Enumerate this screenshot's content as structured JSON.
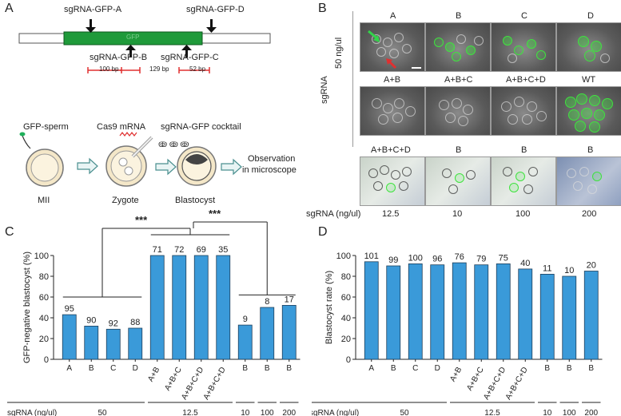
{
  "panel_a": {
    "letter": "A",
    "gene_label": "GFP",
    "sgrna_a": "sgRNA-GFP-A",
    "sgrna_b": "sgRNA-GFP-B",
    "sgrna_c": "sgRNA-GFP-C",
    "sgrna_d": "sgRNA-GFP-D",
    "dist_1": "100 bp",
    "dist_2": "129 bp",
    "dist_3": "52 bp",
    "workflow": {
      "gfp_sperm": "GFP-sperm",
      "cas9": "Cas9 mRNA",
      "cocktail": "sgRNA-GFP cocktail",
      "mii": "MII",
      "zygote": "Zygote",
      "blastocyst": "Blastocyst",
      "observation_1": "Observation",
      "observation_2": "in microscope"
    }
  },
  "panel_b": {
    "letter": "B",
    "side_label_conc": "50 ng/ul",
    "side_label_sgrna": "sgRNA",
    "row1": [
      "A",
      "B",
      "C",
      "D"
    ],
    "row2": [
      "A+B",
      "A+B+C",
      "A+B+C+D",
      "WT"
    ],
    "row3": [
      "A+B+C+D",
      "B",
      "B",
      "B"
    ],
    "conc_label": "sgRNA (ng/ul)",
    "conc_values": [
      "12.5",
      "10",
      "100",
      "200"
    ]
  },
  "panel_c": {
    "letter": "C",
    "significance_1": "***",
    "significance_2": "***"
  },
  "panel_d": {
    "letter": "D"
  },
  "chart_data": [
    {
      "type": "bar",
      "title": "",
      "ylabel": "GFP-negative blastocyst (%)",
      "xlabel": "sgRNA (ng/ul)",
      "ylim": [
        0,
        100
      ],
      "yticks": [
        "0",
        "20",
        "40",
        "60",
        "80",
        "100"
      ],
      "categories": [
        "A",
        "B",
        "C",
        "D",
        "A+B",
        "A+B+C",
        "A+B+C+D",
        "A+B+C+D",
        "B",
        "B",
        "B"
      ],
      "values": [
        43,
        32,
        29,
        30,
        100,
        100,
        100,
        100,
        33,
        50,
        52
      ],
      "bar_labels": [
        "95",
        "90",
        "92",
        "88",
        "71",
        "72",
        "69",
        "35",
        "9",
        "8",
        "17"
      ],
      "concentration_groups": [
        "50",
        "12.5",
        "10",
        "100",
        "200"
      ]
    },
    {
      "type": "bar",
      "title": "",
      "ylabel": "Blastocyst rate (%)",
      "xlabel": "sgRNA (ng/ul)",
      "ylim": [
        0,
        100
      ],
      "yticks": [
        "0",
        "20",
        "40",
        "60",
        "80",
        "100"
      ],
      "categories": [
        "A",
        "B",
        "C",
        "D",
        "A+B",
        "A+B+C",
        "A+B+C+D",
        "A+B+C+D",
        "B",
        "B",
        "B"
      ],
      "values": [
        94,
        90,
        92,
        91,
        93,
        91,
        92,
        87,
        82,
        80,
        85
      ],
      "bar_labels": [
        "101",
        "99",
        "100",
        "96",
        "76",
        "79",
        "75",
        "40",
        "11",
        "10",
        "20"
      ],
      "concentration_groups": [
        "50",
        "12.5",
        "10",
        "100",
        "200"
      ]
    }
  ],
  "colors": {
    "bar": "#3a9ad9",
    "bar_edge": "#1f3f5a",
    "gene": "#1f9a3a",
    "arrow_red": "#e03030"
  }
}
